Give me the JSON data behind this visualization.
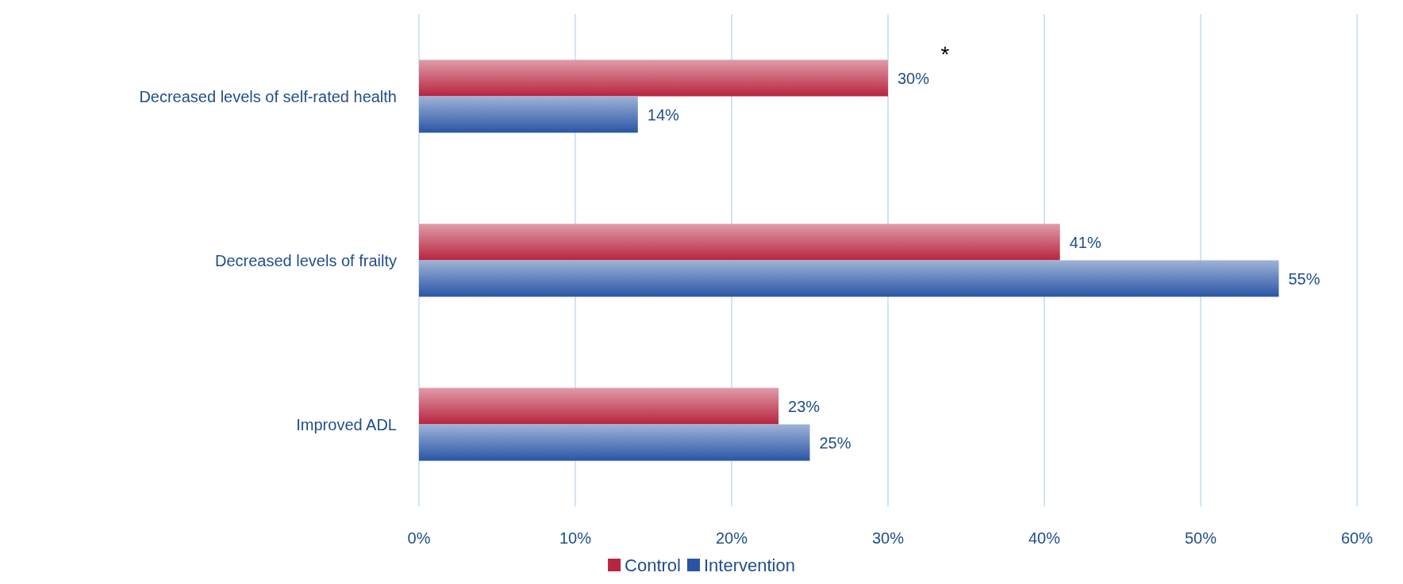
{
  "chart_data": {
    "type": "bar",
    "orientation": "horizontal",
    "categories": [
      "Decreased levels of self-rated health",
      "Decreased levels of frailty",
      "Improved ADL"
    ],
    "series": [
      {
        "name": "Control",
        "color": "#b8243f",
        "values": [
          30,
          41,
          23
        ],
        "value_labels": [
          "30%",
          "41%",
          "23%"
        ]
      },
      {
        "name": "Intervention",
        "color": "#2a55a5",
        "values": [
          14,
          55,
          25
        ],
        "value_labels": [
          "14%",
          "55%",
          "25%"
        ]
      }
    ],
    "xlim": [
      0,
      60
    ],
    "xticks": [
      {
        "value": 0,
        "label": "0%"
      },
      {
        "value": 10,
        "label": "10%"
      },
      {
        "value": 20,
        "label": "20%"
      },
      {
        "value": 30,
        "label": "30%"
      },
      {
        "value": 40,
        "label": "40%"
      },
      {
        "value": 50,
        "label": "50%"
      },
      {
        "value": 60,
        "label": "60%"
      }
    ],
    "grid": "x",
    "legend": "bottom",
    "annotations": [
      {
        "text": "*",
        "x": 30,
        "y": "Decreased levels of self-rated health"
      }
    ]
  }
}
